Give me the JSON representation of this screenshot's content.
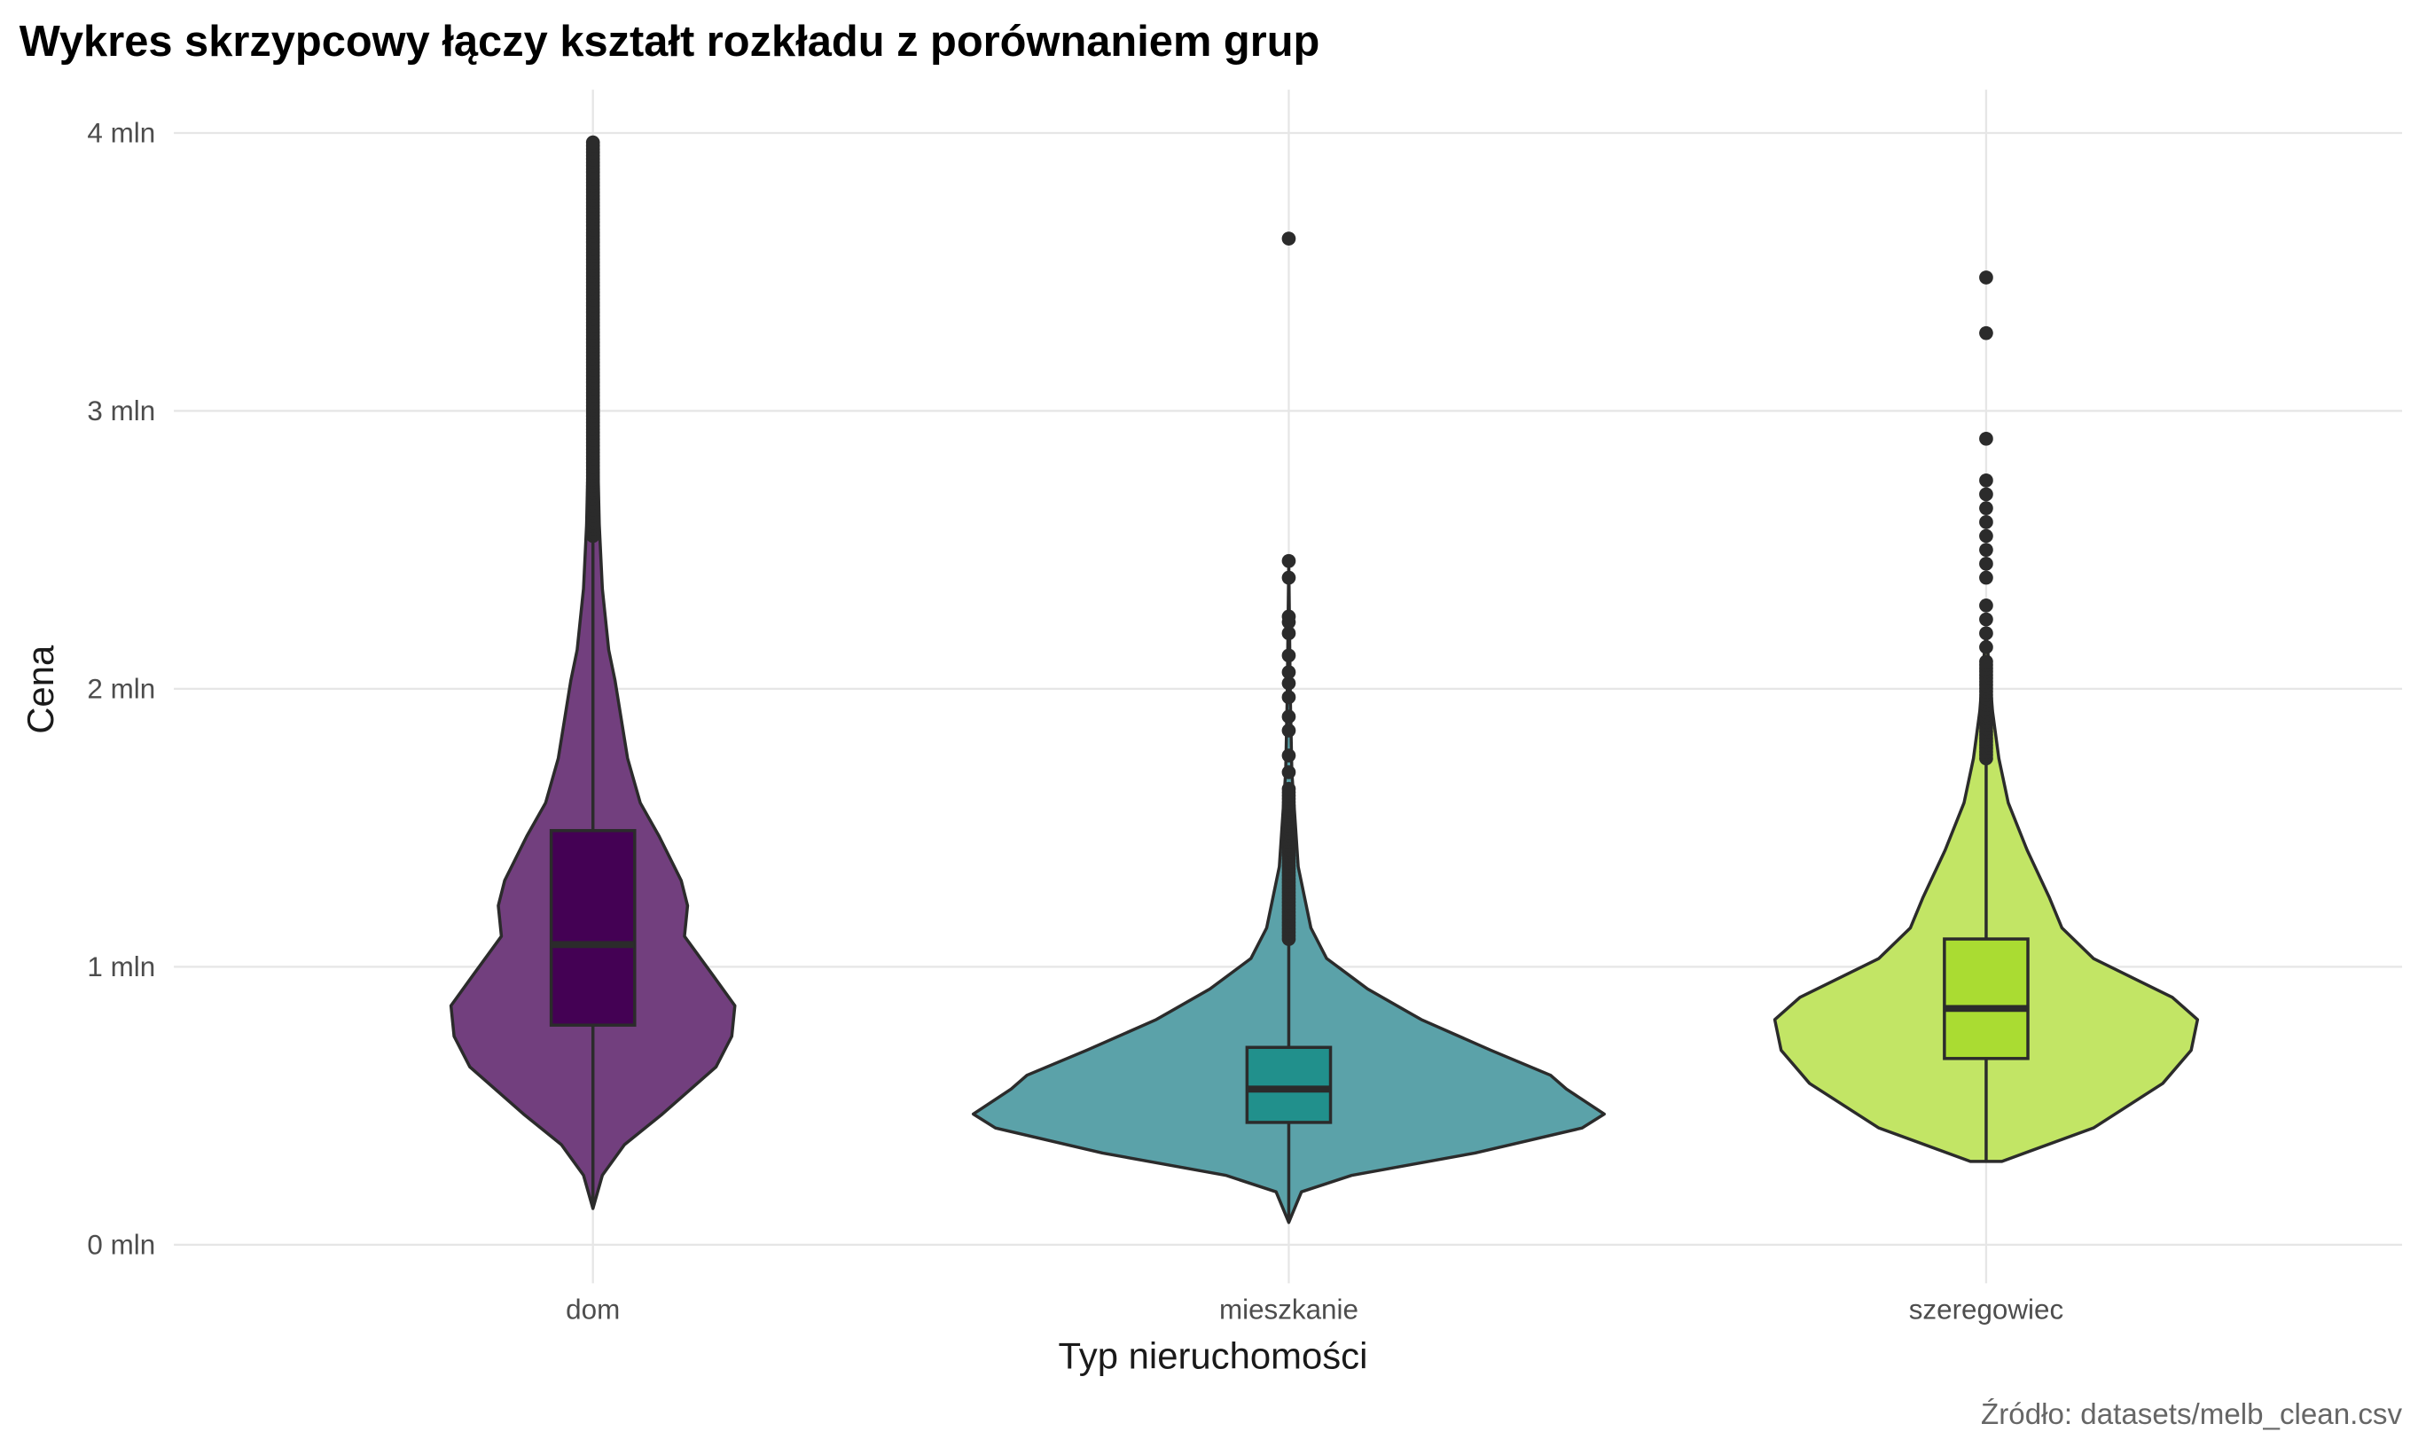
{
  "chart_data": {
    "type": "violin",
    "title": "Wykres skrzypcowy łączy kształt rozkładu z porównaniem grup",
    "xlabel": "Typ nieruchomości",
    "ylabel": "Cena",
    "caption": "Źródło: datasets/melb_clean.csv",
    "ylim": [
      0,
      4
    ],
    "yticks": [
      0,
      1,
      2,
      3,
      4
    ],
    "ytick_labels": [
      "0 mln",
      "1 mln",
      "2 mln",
      "3 mln",
      "4 mln"
    ],
    "grid": true,
    "categories": [
      "dom",
      "mieszkanie",
      "szeregowiec"
    ],
    "groups": [
      {
        "name": "dom",
        "box_color": "#440154",
        "violin_color": "#723F7E",
        "box": {
          "q1": 0.79,
          "median": 1.08,
          "q3": 1.49,
          "whisker_low": 0.13,
          "whisker_high": 2.55
        },
        "density": [
          [
            0.13,
            0
          ],
          [
            0.25,
            0.03
          ],
          [
            0.36,
            0.1
          ],
          [
            0.47,
            0.22
          ],
          [
            0.64,
            0.39
          ],
          [
            0.75,
            0.44
          ],
          [
            0.86,
            0.45
          ],
          [
            0.97,
            0.38
          ],
          [
            1.11,
            0.29
          ],
          [
            1.22,
            0.3
          ],
          [
            1.31,
            0.28
          ],
          [
            1.47,
            0.21
          ],
          [
            1.59,
            0.15
          ],
          [
            1.75,
            0.11
          ],
          [
            2.03,
            0.07
          ],
          [
            2.14,
            0.05
          ],
          [
            2.36,
            0.03
          ],
          [
            2.59,
            0.02
          ],
          [
            3.2,
            0.008
          ],
          [
            3.97,
            0
          ]
        ],
        "outliers": {
          "dense_from": 2.55,
          "dense_to": 3.97,
          "extra": []
        }
      },
      {
        "name": "mieszkanie",
        "box_color": "#21908C",
        "violin_color": "#5BA2A9",
        "box": {
          "q1": 0.44,
          "median": 0.56,
          "q3": 0.71,
          "whisker_low": 0.09,
          "whisker_high": 1.1
        },
        "density": [
          [
            0.08,
            0
          ],
          [
            0.19,
            0.04
          ],
          [
            0.25,
            0.2
          ],
          [
            0.33,
            0.59
          ],
          [
            0.42,
            0.93
          ],
          [
            0.47,
            1.0
          ],
          [
            0.56,
            0.88
          ],
          [
            0.61,
            0.83
          ],
          [
            0.7,
            0.64
          ],
          [
            0.81,
            0.42
          ],
          [
            0.92,
            0.25
          ],
          [
            1.03,
            0.12
          ],
          [
            1.14,
            0.07
          ],
          [
            1.25,
            0.05
          ],
          [
            1.36,
            0.03
          ],
          [
            1.7,
            0.01
          ],
          [
            1.97,
            0.005
          ],
          [
            2.46,
            0
          ]
        ],
        "outliers": {
          "dense_from": 1.1,
          "dense_to": 1.65,
          "extra": [
            1.7,
            1.76,
            1.85,
            1.9,
            1.97,
            2.02,
            2.06,
            2.12,
            2.2,
            2.24,
            2.26,
            2.4,
            2.46,
            3.62
          ]
        }
      },
      {
        "name": "szeregowiec",
        "box_color": "#AADC32",
        "violin_color": "#C2E565",
        "box": {
          "q1": 0.67,
          "median": 0.85,
          "q3": 1.1,
          "whisker_low": 0.3,
          "whisker_high": 1.75
        },
        "density": [
          [
            0.3,
            0.05
          ],
          [
            0.42,
            0.34
          ],
          [
            0.58,
            0.56
          ],
          [
            0.7,
            0.65
          ],
          [
            0.81,
            0.67
          ],
          [
            0.89,
            0.59
          ],
          [
            1.03,
            0.34
          ],
          [
            1.14,
            0.24
          ],
          [
            1.25,
            0.2
          ],
          [
            1.42,
            0.13
          ],
          [
            1.59,
            0.07
          ],
          [
            1.75,
            0.04
          ],
          [
            1.92,
            0.02
          ],
          [
            2.14,
            0.005
          ],
          [
            2.2,
            0
          ]
        ],
        "outliers": {
          "dense_from": 1.75,
          "dense_to": 2.1,
          "extra": [
            2.15,
            2.2,
            2.25,
            2.3,
            2.4,
            2.45,
            2.5,
            2.55,
            2.6,
            2.65,
            2.7,
            2.75,
            2.9,
            3.28,
            3.48
          ]
        }
      }
    ]
  }
}
